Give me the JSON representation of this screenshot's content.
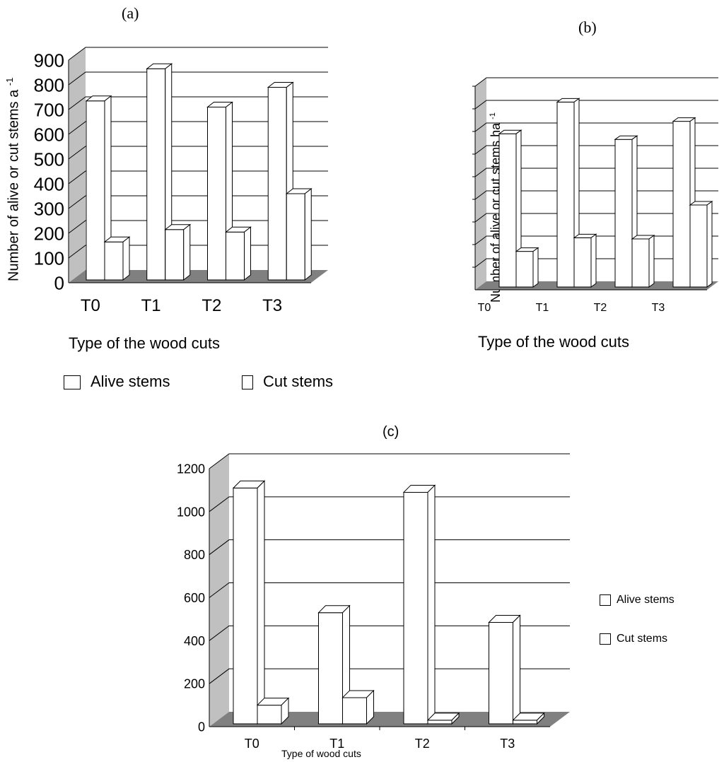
{
  "panel_a": {
    "label": "(a)",
    "ylabel": "Number of alive or cut stems a",
    "ylabel_sup": "-1",
    "xlabel": "Type of the wood cuts",
    "legend": [
      "Alive stems",
      "Cut stems"
    ]
  },
  "panel_b": {
    "label": "(b)",
    "ylabel": "Number of alive or cut stems ha",
    "ylabel_sup": "-1",
    "xlabel": "Type of the wood cuts"
  },
  "panel_c": {
    "label": "(c)",
    "xlabel": "Type of wood cuts",
    "legend": [
      "Alive stems",
      "Cut stems"
    ]
  },
  "colors": {
    "floor": "#808080",
    "wall": "#c0c0c0",
    "bar_fill": "#ffffff",
    "outline": "#000000"
  },
  "chart_data": [
    {
      "type": "bar",
      "title": "(a)",
      "categories": [
        "T0",
        "T1",
        "T2",
        "T3"
      ],
      "series": [
        {
          "name": "Alive stems",
          "values": [
            735,
            865,
            710,
            790
          ]
        },
        {
          "name": "Cut stems",
          "values": [
            165,
            215,
            205,
            360
          ]
        }
      ],
      "yticks": [
        0,
        100,
        200,
        300,
        400,
        500,
        600,
        700,
        800,
        900
      ],
      "ylim": [
        0,
        900
      ],
      "xlabel": "Type of the wood cuts",
      "ylabel": "Number of alive or cut stems a -1",
      "grid": true,
      "legend": "bottom"
    },
    {
      "type": "bar",
      "title": "(b)",
      "categories": [
        "T0",
        "T1",
        "T2",
        "T3"
      ],
      "series": [
        {
          "values": [
            690,
            830,
            665,
            745
          ]
        },
        {
          "values": [
            170,
            230,
            225,
            375
          ]
        }
      ],
      "ylim": [
        0,
        900
      ],
      "xlabel": "Type of the wood cuts",
      "ylabel": "Number of alive or cut stems ha -1",
      "grid": true
    },
    {
      "type": "bar",
      "title": "(c)",
      "categories": [
        "T0",
        "T1",
        "T2",
        "T3"
      ],
      "series": [
        {
          "name": "Alive stems",
          "values": [
            1110,
            530,
            1090,
            485
          ]
        },
        {
          "name": "Cut stems",
          "values": [
            100,
            135,
            30,
            30
          ]
        }
      ],
      "yticks": [
        0,
        200,
        400,
        600,
        800,
        1000,
        1200
      ],
      "ylim": [
        0,
        1200
      ],
      "xlabel": "Type of wood cuts",
      "grid": true,
      "legend": "right"
    }
  ]
}
